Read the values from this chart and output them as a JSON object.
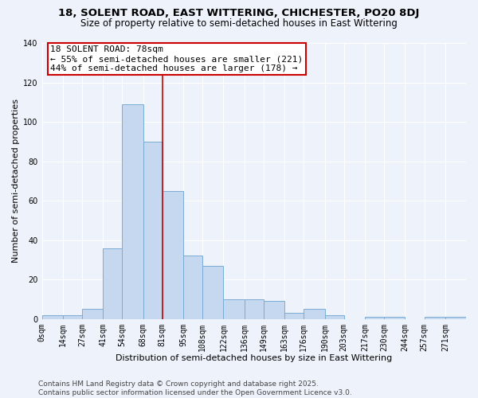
{
  "title": "18, SOLENT ROAD, EAST WITTERING, CHICHESTER, PO20 8DJ",
  "subtitle": "Size of property relative to semi-detached houses in East Wittering",
  "xlabel": "Distribution of semi-detached houses by size in East Wittering",
  "ylabel": "Number of semi-detached properties",
  "footer_line1": "Contains HM Land Registry data © Crown copyright and database right 2025.",
  "footer_line2": "Contains public sector information licensed under the Open Government Licence v3.0.",
  "annotation_title": "18 SOLENT ROAD: 78sqm",
  "annotation_line1": "← 55% of semi-detached houses are smaller (221)",
  "annotation_line2": "44% of semi-detached houses are larger (178) →",
  "property_size": 78,
  "bar_labels": [
    "0sqm",
    "14sqm",
    "27sqm",
    "41sqm",
    "54sqm",
    "68sqm",
    "81sqm",
    "95sqm",
    "108sqm",
    "122sqm",
    "136sqm",
    "149sqm",
    "163sqm",
    "176sqm",
    "190sqm",
    "203sqm",
    "217sqm",
    "230sqm",
    "244sqm",
    "257sqm",
    "271sqm"
  ],
  "bar_values": [
    2,
    2,
    5,
    36,
    109,
    90,
    65,
    32,
    27,
    10,
    10,
    9,
    3,
    5,
    2,
    0,
    1,
    1,
    0,
    1,
    1
  ],
  "bar_edges": [
    0,
    14,
    27,
    41,
    54,
    68,
    81,
    95,
    108,
    122,
    136,
    149,
    163,
    176,
    190,
    203,
    217,
    230,
    244,
    257,
    271,
    285
  ],
  "bar_color": "#c5d8f0",
  "bar_edge_color": "#7aadd4",
  "red_line_x": 81,
  "ylim": [
    0,
    140
  ],
  "yticks": [
    0,
    20,
    40,
    60,
    80,
    100,
    120,
    140
  ],
  "bg_color": "#eef2fb",
  "grid_color": "#ffffff",
  "annotation_box_color": "#ffffff",
  "annotation_box_edge": "#cc0000",
  "red_line_color": "#cc0000",
  "title_fontsize": 9.5,
  "subtitle_fontsize": 8.5,
  "axis_label_fontsize": 8,
  "tick_fontsize": 7,
  "footer_fontsize": 6.5,
  "annotation_fontsize": 8
}
